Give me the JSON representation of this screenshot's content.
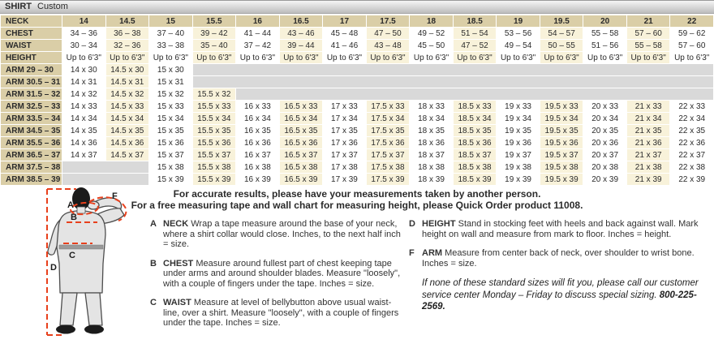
{
  "header": {
    "title": "SHIRT",
    "subtitle": "Custom"
  },
  "colors": {
    "tan": "#dacea7",
    "cream": "#f8f2da",
    "empty_gray": "#d9d9d9",
    "dashed_red": "#e8401c"
  },
  "table": {
    "neck_label": "NECK",
    "chest_label": "CHEST",
    "waist_label": "WAIST",
    "height_label": "HEIGHT",
    "neck_sizes": [
      "14",
      "14.5",
      "15",
      "15.5",
      "16",
      "16.5",
      "17",
      "17.5",
      "18",
      "18.5",
      "19",
      "19.5",
      "20",
      "21",
      "22"
    ],
    "chest": [
      "34 – 36",
      "36 – 38",
      "37 – 40",
      "39 – 42",
      "41 – 44",
      "43 – 46",
      "45 – 48",
      "47 – 50",
      "49 – 52",
      "51 – 54",
      "53 – 56",
      "54 – 57",
      "55 – 58",
      "57 – 60",
      "59 – 62"
    ],
    "waist": [
      "30 – 34",
      "32 – 36",
      "33 – 38",
      "35 – 40",
      "37 – 42",
      "39 – 44",
      "41 – 46",
      "43 – 48",
      "45 – 50",
      "47 – 52",
      "49 – 54",
      "50 – 55",
      "51 – 56",
      "55 – 58",
      "57 – 60"
    ],
    "height_value": "Up to 6'3\"",
    "arm_rows": [
      {
        "label": "ARM 29 – 30",
        "start": 0,
        "values": [
          "14 x 30",
          "14.5 x 30",
          "15 x 30"
        ]
      },
      {
        "label": "ARM 30.5 – 31",
        "start": 0,
        "values": [
          "14 x 31",
          "14.5 x 31",
          "15 x 31"
        ]
      },
      {
        "label": "ARM 31.5 – 32",
        "start": 0,
        "values": [
          "14 x 32",
          "14.5 x 32",
          "15 x 32",
          "15.5 x 32"
        ]
      },
      {
        "label": "ARM 32.5 – 33",
        "start": 0,
        "values": [
          "14 x 33",
          "14.5 x 33",
          "15 x 33",
          "15.5 x 33",
          "16 x 33",
          "16.5 x 33",
          "17 x 33",
          "17.5 x 33",
          "18 x 33",
          "18.5 x 33",
          "19 x 33",
          "19.5 x 33",
          "20 x 33",
          "21 x 33",
          "22 x 33"
        ]
      },
      {
        "label": "ARM 33.5 – 34",
        "start": 0,
        "values": [
          "14 x 34",
          "14.5 x 34",
          "15 x 34",
          "15.5 x 34",
          "16 x 34",
          "16.5 x 34",
          "17 x 34",
          "17.5 x 34",
          "18 x 34",
          "18.5 x 34",
          "19 x 34",
          "19.5 x 34",
          "20 x 34",
          "21 x 34",
          "22 x 34"
        ]
      },
      {
        "label": "ARM 34.5 – 35",
        "start": 0,
        "values": [
          "14 x 35",
          "14.5 x 35",
          "15 x 35",
          "15.5 x 35",
          "16 x 35",
          "16.5 x 35",
          "17 x 35",
          "17.5 x 35",
          "18 x 35",
          "18.5 x 35",
          "19 x 35",
          "19.5 x 35",
          "20 x 35",
          "21 x 35",
          "22 x 35"
        ]
      },
      {
        "label": "ARM 35.5 – 36",
        "start": 0,
        "values": [
          "14 x 36",
          "14.5 x 36",
          "15 x 36",
          "15.5 x 36",
          "16 x 36",
          "16.5 x 36",
          "17 x 36",
          "17.5 x 36",
          "18 x 36",
          "18.5 x 36",
          "19 x 36",
          "19.5 x 36",
          "20 x 36",
          "21 x 36",
          "22 x 36"
        ]
      },
      {
        "label": "ARM 36.5 – 37",
        "start": 0,
        "values": [
          "14 x 37",
          "14.5 x 37",
          "15 x 37",
          "15.5 x 37",
          "16 x 37",
          "16.5 x 37",
          "17 x 37",
          "17.5 x 37",
          "18 x 37",
          "18.5 x 37",
          "19 x 37",
          "19.5 x 37",
          "20 x 37",
          "21 x 37",
          "22 x 37"
        ]
      },
      {
        "label": "ARM 37.5 – 38",
        "start": 2,
        "values": [
          "15 x 38",
          "15.5 x 38",
          "16 x 38",
          "16.5 x 38",
          "17 x 38",
          "17.5 x 38",
          "18 x 38",
          "18.5 x 38",
          "19 x 38",
          "19.5 x 38",
          "20 x 38",
          "21 x 38",
          "22 x 38"
        ]
      },
      {
        "label": "ARM 38.5 – 39",
        "start": 2,
        "values": [
          "15 x 39",
          "15.5 x 39",
          "16 x 39",
          "16.5 x 39",
          "17 x 39",
          "17.5 x 39",
          "18 x 39",
          "18.5 x 39",
          "19 x 39",
          "19.5 x 39",
          "20 x 39",
          "21 x 39",
          "22 x 39"
        ]
      }
    ]
  },
  "figure": {
    "label_a": "A",
    "label_b": "B",
    "label_c": "C",
    "label_d": "D",
    "label_f": "F"
  },
  "notes": {
    "intro_line1": "For accurate results, please have your measurements taken by another person.",
    "intro_line2": "For a free measuring tape and wall chart for measuring height, please Quick Order product 11008.",
    "items": [
      {
        "letter": "A",
        "keyword": "NECK",
        "text": "Wrap a tape measure around the base of your neck, where a shirt collar would close. Inches, to the next half inch = size."
      },
      {
        "letter": "B",
        "keyword": "CHEST",
        "text": "Measure around fullest part of chest keeping tape under arms and around shoulder blades. Measure \"loosely\", with a couple of fingers under the tape. Inches = size."
      },
      {
        "letter": "C",
        "keyword": "WAIST",
        "text": "Measure at level of bellybutton above usual waist-line, over a shirt. Measure \"loosely\", with a couple of fingers under the tape. Inches = size."
      },
      {
        "letter": "D",
        "keyword": "HEIGHT",
        "text": "Stand in stocking feet with heels and back against wall. Mark height on wall and measure from mark to floor. Inches = height."
      },
      {
        "letter": "F",
        "keyword": "ARM",
        "text": "Measure from center back of neck, over shoulder to wrist bone. Inches = size."
      }
    ],
    "special_sizing": "If none of these standard sizes will fit you, please call our customer service center Monday – Friday to discuss special sizing.",
    "phone": "800-225-2569."
  }
}
